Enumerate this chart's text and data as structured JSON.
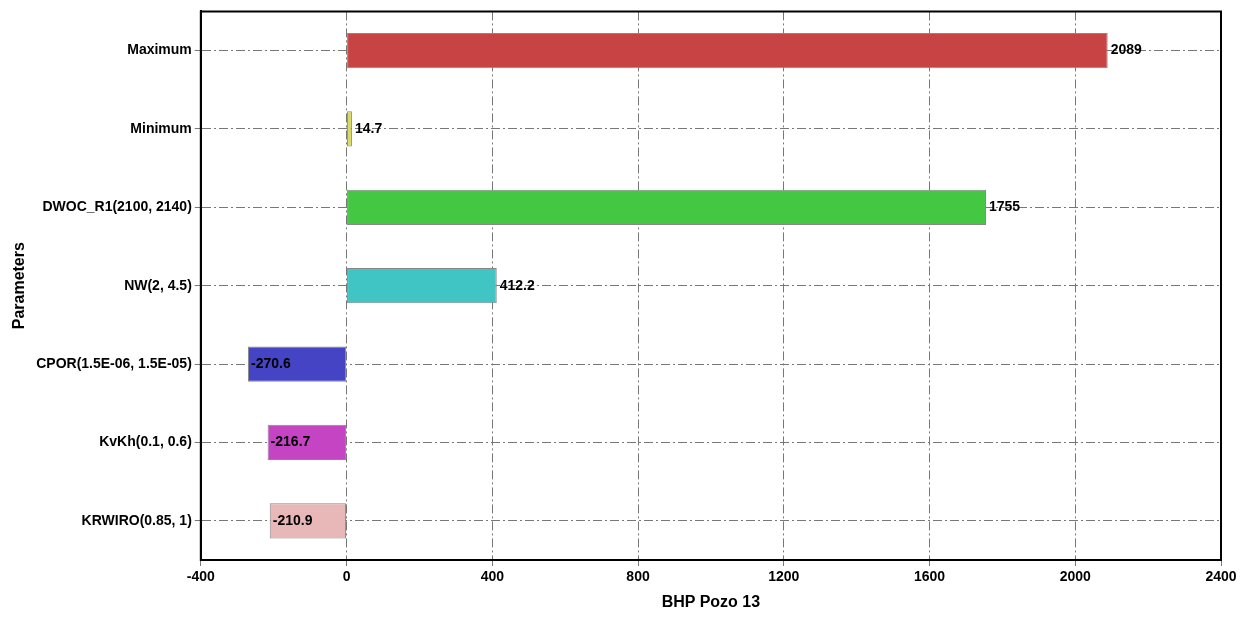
{
  "chart_data": {
    "type": "bar",
    "orientation": "horizontal",
    "xlabel": "BHP Pozo 13",
    "ylabel": "Parameters",
    "categories": [
      "Maximum",
      "Minimum",
      "DWOC_R1(2100, 2140)",
      "NW(2, 4.5)",
      "CPOR(1.5E-06, 1.5E-05)",
      "KvKh(0.1, 0.6)",
      "KRWIRO(0.85, 1)"
    ],
    "values": [
      2089,
      14.7,
      1755,
      412.2,
      -270.6,
      -216.7,
      -210.9
    ],
    "colors": [
      "#c84444",
      "#d8d860",
      "#44c844",
      "#40c4c4",
      "#4444c4",
      "#c444c4",
      "#e8b8b8"
    ],
    "xlim": [
      -400,
      2400
    ],
    "xticks": [
      -400,
      0,
      400,
      800,
      1200,
      1600,
      2000,
      2400
    ],
    "grid": true,
    "data_labels": true,
    "legend": false
  }
}
